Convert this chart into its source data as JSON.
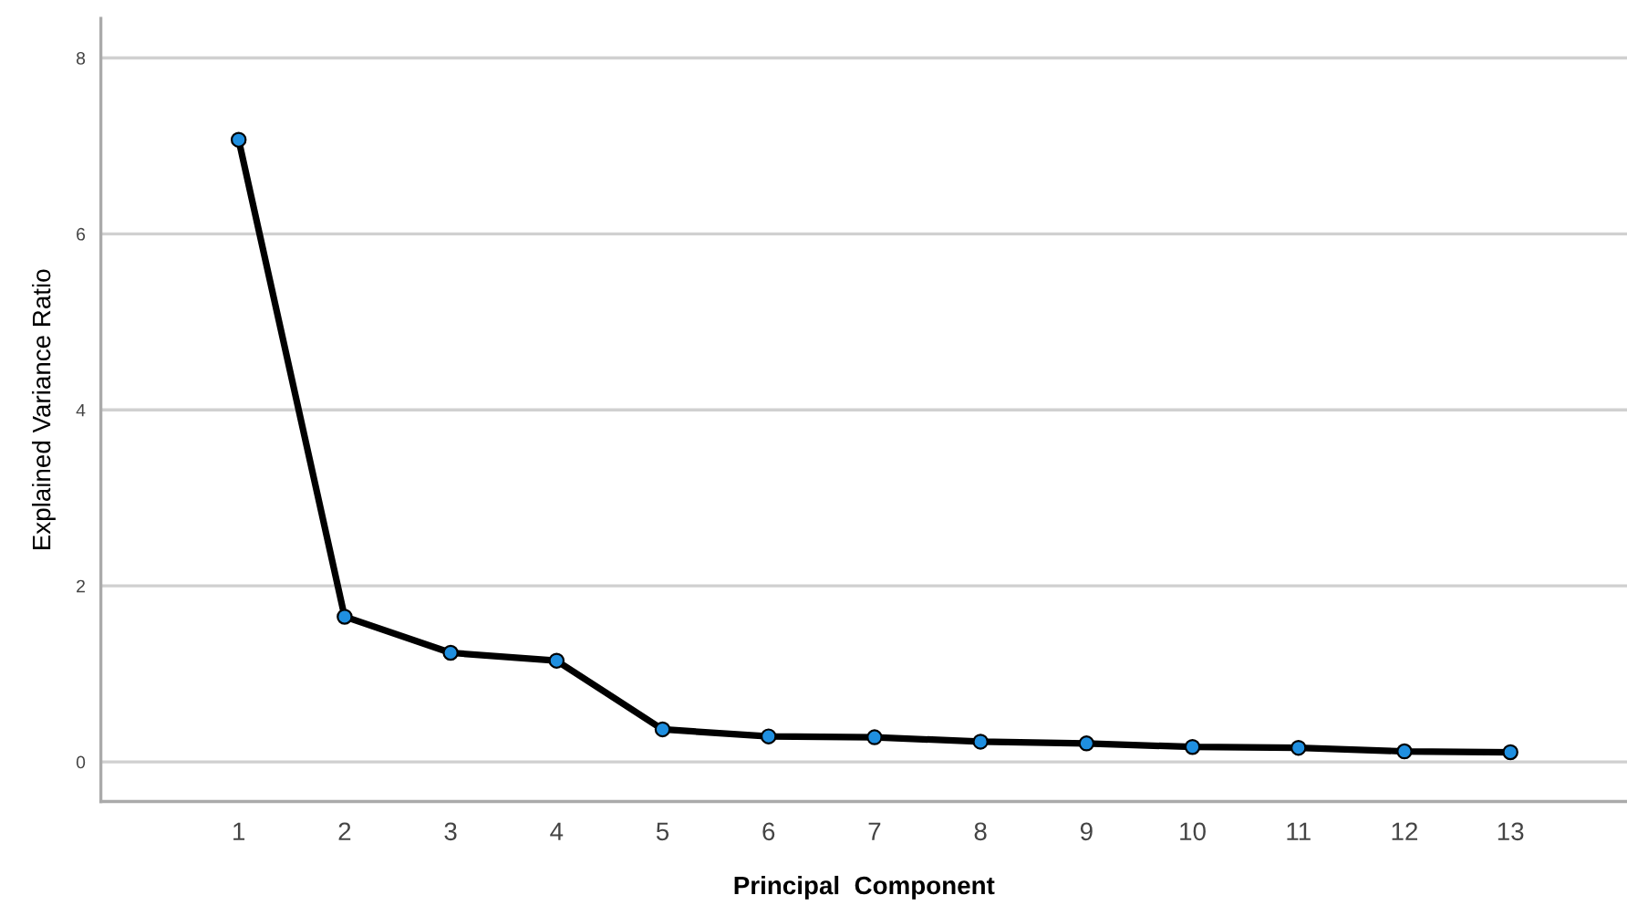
{
  "chart_data": {
    "type": "line",
    "xlabel": "Principal  Component",
    "ylabel": "Explained Variance Ratio",
    "categories": [
      "1",
      "2",
      "3",
      "4",
      "5",
      "6",
      "7",
      "8",
      "9",
      "10",
      "11",
      "12",
      "13"
    ],
    "series": [
      {
        "color": "#000000",
        "values": [
          7.07,
          1.65,
          1.24,
          1.15,
          0.37,
          0.29,
          0.28,
          0.23,
          0.21,
          0.17,
          0.16,
          0.12,
          0.11
        ]
      }
    ],
    "ylim": [
      -0.45,
      8.45
    ],
    "yticks": [
      0,
      2,
      4,
      6,
      8
    ],
    "grid": "y",
    "marker": "circle",
    "line_style": "solid"
  }
}
